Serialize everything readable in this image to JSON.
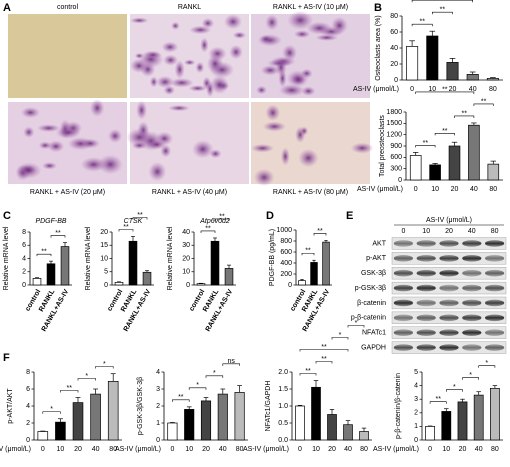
{
  "panel_labels": [
    "A",
    "B",
    "C",
    "D",
    "E",
    "F"
  ],
  "chart_data": [
    {
      "type": "micrograph",
      "labels": [
        "control",
        "RANKL",
        "RANKL + AS-IV (10 μM)",
        "RANKL + AS-IV (20 μM)",
        "RANKL + AS-IV (40 μM)",
        "RANKL + AS-IV (80 μM)"
      ]
    },
    {
      "type": "bar",
      "ylabel": "Osteoclasts area (%)",
      "xlabel": "AS-IV (μmol/L)",
      "categories": [
        "0",
        "10",
        "20",
        "40",
        "80"
      ],
      "values": [
        42,
        55,
        22,
        7,
        2
      ],
      "errors": [
        7,
        6,
        5,
        3,
        1
      ],
      "colors": [
        "#ffffff",
        "#000000",
        "#444444",
        "#777777",
        "#bbbbbb"
      ],
      "ylim": [
        0,
        80
      ],
      "yticks": [
        0,
        20,
        40,
        60,
        80
      ],
      "significance": [
        {
          "label": "**",
          "between": [
            0,
            1
          ]
        },
        {
          "label": "**",
          "between": [
            1,
            2
          ]
        },
        {
          "label": "**",
          "between": [
            0,
            3
          ]
        },
        {
          "label": "**",
          "between": [
            2,
            3
          ]
        },
        {
          "label": "*",
          "between": [
            3,
            4
          ]
        }
      ]
    },
    {
      "type": "bar",
      "ylabel": "Total preosteoclasts",
      "xlabel": "AS-IV (μmol/L)",
      "categories": [
        "0",
        "10",
        "20",
        "40",
        "80"
      ],
      "values": [
        650,
        400,
        900,
        1450,
        420
      ],
      "errors": [
        80,
        40,
        100,
        60,
        80
      ],
      "colors": [
        "#ffffff",
        "#000000",
        "#444444",
        "#777777",
        "#bbbbbb"
      ],
      "ylim": [
        0,
        1800
      ],
      "yticks": [
        0,
        300,
        600,
        900,
        1200,
        1500,
        1800
      ],
      "significance": [
        {
          "label": "**",
          "between": [
            0,
            1
          ]
        },
        {
          "label": "**",
          "between": [
            1,
            2
          ]
        },
        {
          "label": "**",
          "between": [
            2,
            3
          ]
        },
        {
          "label": "**",
          "between": [
            3,
            4
          ]
        },
        {
          "label": "**",
          "between": [
            0,
            3
          ]
        }
      ]
    },
    {
      "type": "bar",
      "title": "PDGF-BB",
      "ylabel": "Relative mRNA level",
      "categories": [
        "control",
        "RANKL",
        "RANKL+AS-IV"
      ],
      "values": [
        1,
        3.2,
        5.8
      ],
      "errors": [
        0.1,
        0.4,
        0.6
      ],
      "colors": [
        "#ffffff",
        "#000000",
        "#777777"
      ],
      "ylim": [
        0,
        8
      ],
      "yticks": [
        0,
        2,
        4,
        6,
        8
      ],
      "significance": [
        {
          "label": "**",
          "between": [
            0,
            1
          ]
        },
        {
          "label": "**",
          "between": [
            1,
            2
          ]
        }
      ]
    },
    {
      "type": "bar",
      "title": "CTSK",
      "ylabel": "Relative mRNA level",
      "categories": [
        "control",
        "RANKL",
        "RANKL+AS-IV"
      ],
      "values": [
        1,
        16.5,
        4.8
      ],
      "errors": [
        0.2,
        1.8,
        0.6
      ],
      "colors": [
        "#ffffff",
        "#000000",
        "#777777"
      ],
      "ylim": [
        0,
        20
      ],
      "yticks": [
        0,
        5,
        10,
        15,
        20
      ],
      "significance": [
        {
          "label": "**",
          "between": [
            0,
            1
          ]
        },
        {
          "label": "**",
          "between": [
            1,
            2
          ]
        }
      ]
    },
    {
      "type": "bar",
      "title": "Atp6v0d2",
      "ylabel": "Relative mRNA level",
      "categories": [
        "control",
        "RANKL",
        "RANKL+AS-IV"
      ],
      "values": [
        1,
        33,
        12.5
      ],
      "errors": [
        0.3,
        2.5,
        2.5
      ],
      "colors": [
        "#ffffff",
        "#000000",
        "#777777"
      ],
      "ylim": [
        0,
        40
      ],
      "yticks": [
        0,
        10,
        20,
        30,
        40
      ],
      "significance": [
        {
          "label": "**",
          "between": [
            0,
            1
          ]
        },
        {
          "label": "**",
          "between": [
            1,
            2
          ]
        }
      ]
    },
    {
      "type": "bar",
      "ylabel": "PDGF-BB (pg/mL)",
      "categories": [
        "control",
        "RANKL",
        "RANKL+AS-IV"
      ],
      "values": [
        80,
        410,
        780
      ],
      "errors": [
        20,
        40,
        30
      ],
      "colors": [
        "#ffffff",
        "#000000",
        "#777777"
      ],
      "ylim": [
        0,
        1000
      ],
      "yticks": [
        0,
        200,
        400,
        600,
        800,
        1000
      ],
      "significance": [
        {
          "label": "**",
          "between": [
            0,
            1
          ]
        },
        {
          "label": "**",
          "between": [
            1,
            2
          ]
        }
      ]
    },
    {
      "type": "blot",
      "header": "AS-IV (μmol/L)",
      "lanes": [
        "0",
        "10",
        "20",
        "40",
        "80"
      ],
      "rows": [
        "AKT",
        "p-AKT",
        "GSK-3β",
        "p-GSK-3β",
        "β-catenin",
        "p-β-catenin",
        "NFATc1",
        "GAPDH"
      ]
    },
    {
      "type": "bar",
      "ylabel": "p-AKT/AKT",
      "xlabel": "AS-IV (μmol/L)",
      "categories": [
        "0",
        "10",
        "20",
        "40",
        "80"
      ],
      "values": [
        1,
        2.1,
        4.4,
        5.4,
        6.9
      ],
      "errors": [
        0.05,
        0.4,
        0.6,
        0.6,
        0.9
      ],
      "colors": [
        "#ffffff",
        "#000000",
        "#444444",
        "#777777",
        "#bbbbbb"
      ],
      "ylim": [
        0,
        8
      ],
      "yticks": [
        0,
        2,
        4,
        6,
        8
      ],
      "significance": [
        {
          "label": "*",
          "between": [
            0,
            1
          ]
        },
        {
          "label": "**",
          "between": [
            1,
            2
          ]
        },
        {
          "label": "*",
          "between": [
            2,
            3
          ]
        },
        {
          "label": "*",
          "between": [
            3,
            4
          ]
        }
      ]
    },
    {
      "type": "bar",
      "ylabel": "p-GSK-3β/GSK-3β",
      "xlabel": "AS-IV (μmol/L)",
      "categories": [
        "0",
        "10",
        "20",
        "40",
        "80"
      ],
      "values": [
        1,
        1.8,
        2.3,
        2.7,
        2.8
      ],
      "errors": [
        0.03,
        0.15,
        0.2,
        0.3,
        0.4
      ],
      "colors": [
        "#ffffff",
        "#000000",
        "#444444",
        "#777777",
        "#bbbbbb"
      ],
      "ylim": [
        0,
        4
      ],
      "yticks": [
        0,
        1,
        2,
        3,
        4
      ],
      "significance": [
        {
          "label": "**",
          "between": [
            0,
            1
          ]
        },
        {
          "label": "*",
          "between": [
            1,
            2
          ]
        },
        {
          "label": "*",
          "between": [
            2,
            3
          ]
        },
        {
          "label": "ns",
          "between": [
            3,
            4
          ]
        }
      ]
    },
    {
      "type": "bar",
      "ylabel": "NFATc1/GAPDH",
      "xlabel": "AS-IV (μmol/L)",
      "categories": [
        "0",
        "10",
        "20",
        "40",
        "80"
      ],
      "values": [
        1,
        1.55,
        0.75,
        0.45,
        0.25
      ],
      "errors": [
        0.02,
        0.2,
        0.15,
        0.12,
        0.1
      ],
      "colors": [
        "#ffffff",
        "#000000",
        "#444444",
        "#777777",
        "#bbbbbb"
      ],
      "ylim": [
        0,
        2
      ],
      "yticks": [
        {
          "value": 0,
          "label": "0.0"
        },
        {
          "value": 0.5,
          "label": "0.5"
        },
        {
          "value": 1,
          "label": "1.0"
        },
        {
          "value": 1.5,
          "label": "1.5"
        },
        {
          "value": 2,
          "label": "2.0"
        }
      ],
      "significance": [
        {
          "label": "**",
          "between": [
            0,
            1
          ]
        },
        {
          "label": "**",
          "between": [
            1,
            2
          ]
        },
        {
          "label": "**",
          "between": [
            0,
            3
          ]
        },
        {
          "label": "*",
          "between": [
            2,
            3
          ]
        },
        {
          "label": "*",
          "between": [
            3,
            4
          ]
        }
      ]
    },
    {
      "type": "bar",
      "ylabel": "p-β-catenin/β-catenin",
      "xlabel": "AS-IV (μmol/L)",
      "categories": [
        "0",
        "10",
        "20",
        "40",
        "80"
      ],
      "values": [
        1,
        2.1,
        2.8,
        3.3,
        3.8
      ],
      "errors": [
        0.03,
        0.2,
        0.2,
        0.25,
        0.2
      ],
      "colors": [
        "#ffffff",
        "#000000",
        "#444444",
        "#777777",
        "#bbbbbb"
      ],
      "ylim": [
        0,
        5
      ],
      "yticks": [
        0,
        1,
        2,
        3,
        4,
        5
      ],
      "significance": [
        {
          "label": "**",
          "between": [
            0,
            1
          ]
        },
        {
          "label": "*",
          "between": [
            1,
            2
          ]
        },
        {
          "label": "*",
          "between": [
            2,
            3
          ]
        },
        {
          "label": "*",
          "between": [
            3,
            4
          ]
        }
      ]
    }
  ]
}
